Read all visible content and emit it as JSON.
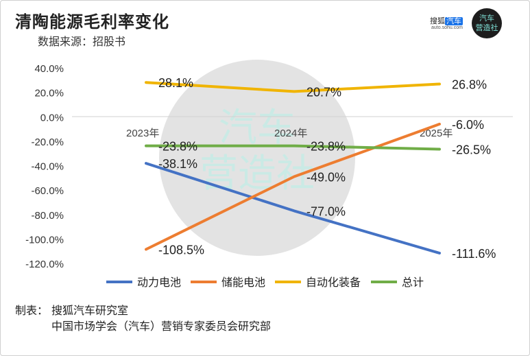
{
  "header": {
    "title": "清陶能源毛利率变化",
    "subtitle": "数据来源：招股书"
  },
  "brand": {
    "name_prefix": "搜狐",
    "name_highlight": "汽车",
    "url": "auto.sohu.com",
    "logo_line1": "汽车",
    "logo_line2": "营造社",
    "watermark_line1": "汽车",
    "watermark_line2": "营造社"
  },
  "credits": {
    "label": "制表：",
    "line1": "搜狐汽车研究室",
    "line2": "中国市场学会（汽车）营销专家委员会研究部"
  },
  "chart_data": {
    "type": "line",
    "categories": [
      "2023年",
      "2024年",
      "2025年"
    ],
    "ylim": [
      -120,
      40
    ],
    "yticks": [
      40,
      20,
      0,
      -20,
      -40,
      -60,
      -80,
      -100,
      -120
    ],
    "ytick_labels": [
      "40.0%",
      "20.0%",
      "0.0%",
      "-20.0%",
      "-40.0%",
      "-60.0%",
      "-80.0%",
      "-100.0%",
      "-120.0%"
    ],
    "legend_position": "bottom",
    "grid": false,
    "series": [
      {
        "name": "动力电池",
        "color": "#4472c4",
        "values": [
          -38.1,
          -77.0,
          -111.6
        ],
        "labels": [
          "-38.1%",
          "-77.0%",
          "-111.6%"
        ]
      },
      {
        "name": "储能电池",
        "color": "#ed7d31",
        "values": [
          -108.5,
          -49.0,
          -6.0
        ],
        "labels": [
          "-108.5%",
          "-49.0%",
          "-6.0%"
        ]
      },
      {
        "name": "自动化装备",
        "color": "#f0b400",
        "values": [
          28.1,
          20.7,
          26.8
        ],
        "labels": [
          "28.1%",
          "20.7%",
          "26.8%"
        ]
      },
      {
        "name": "总计",
        "color": "#70ad47",
        "values": [
          -23.8,
          -23.8,
          -26.5
        ],
        "labels": [
          "-23.8%",
          "-23.8%",
          "-26.5%"
        ]
      }
    ]
  }
}
